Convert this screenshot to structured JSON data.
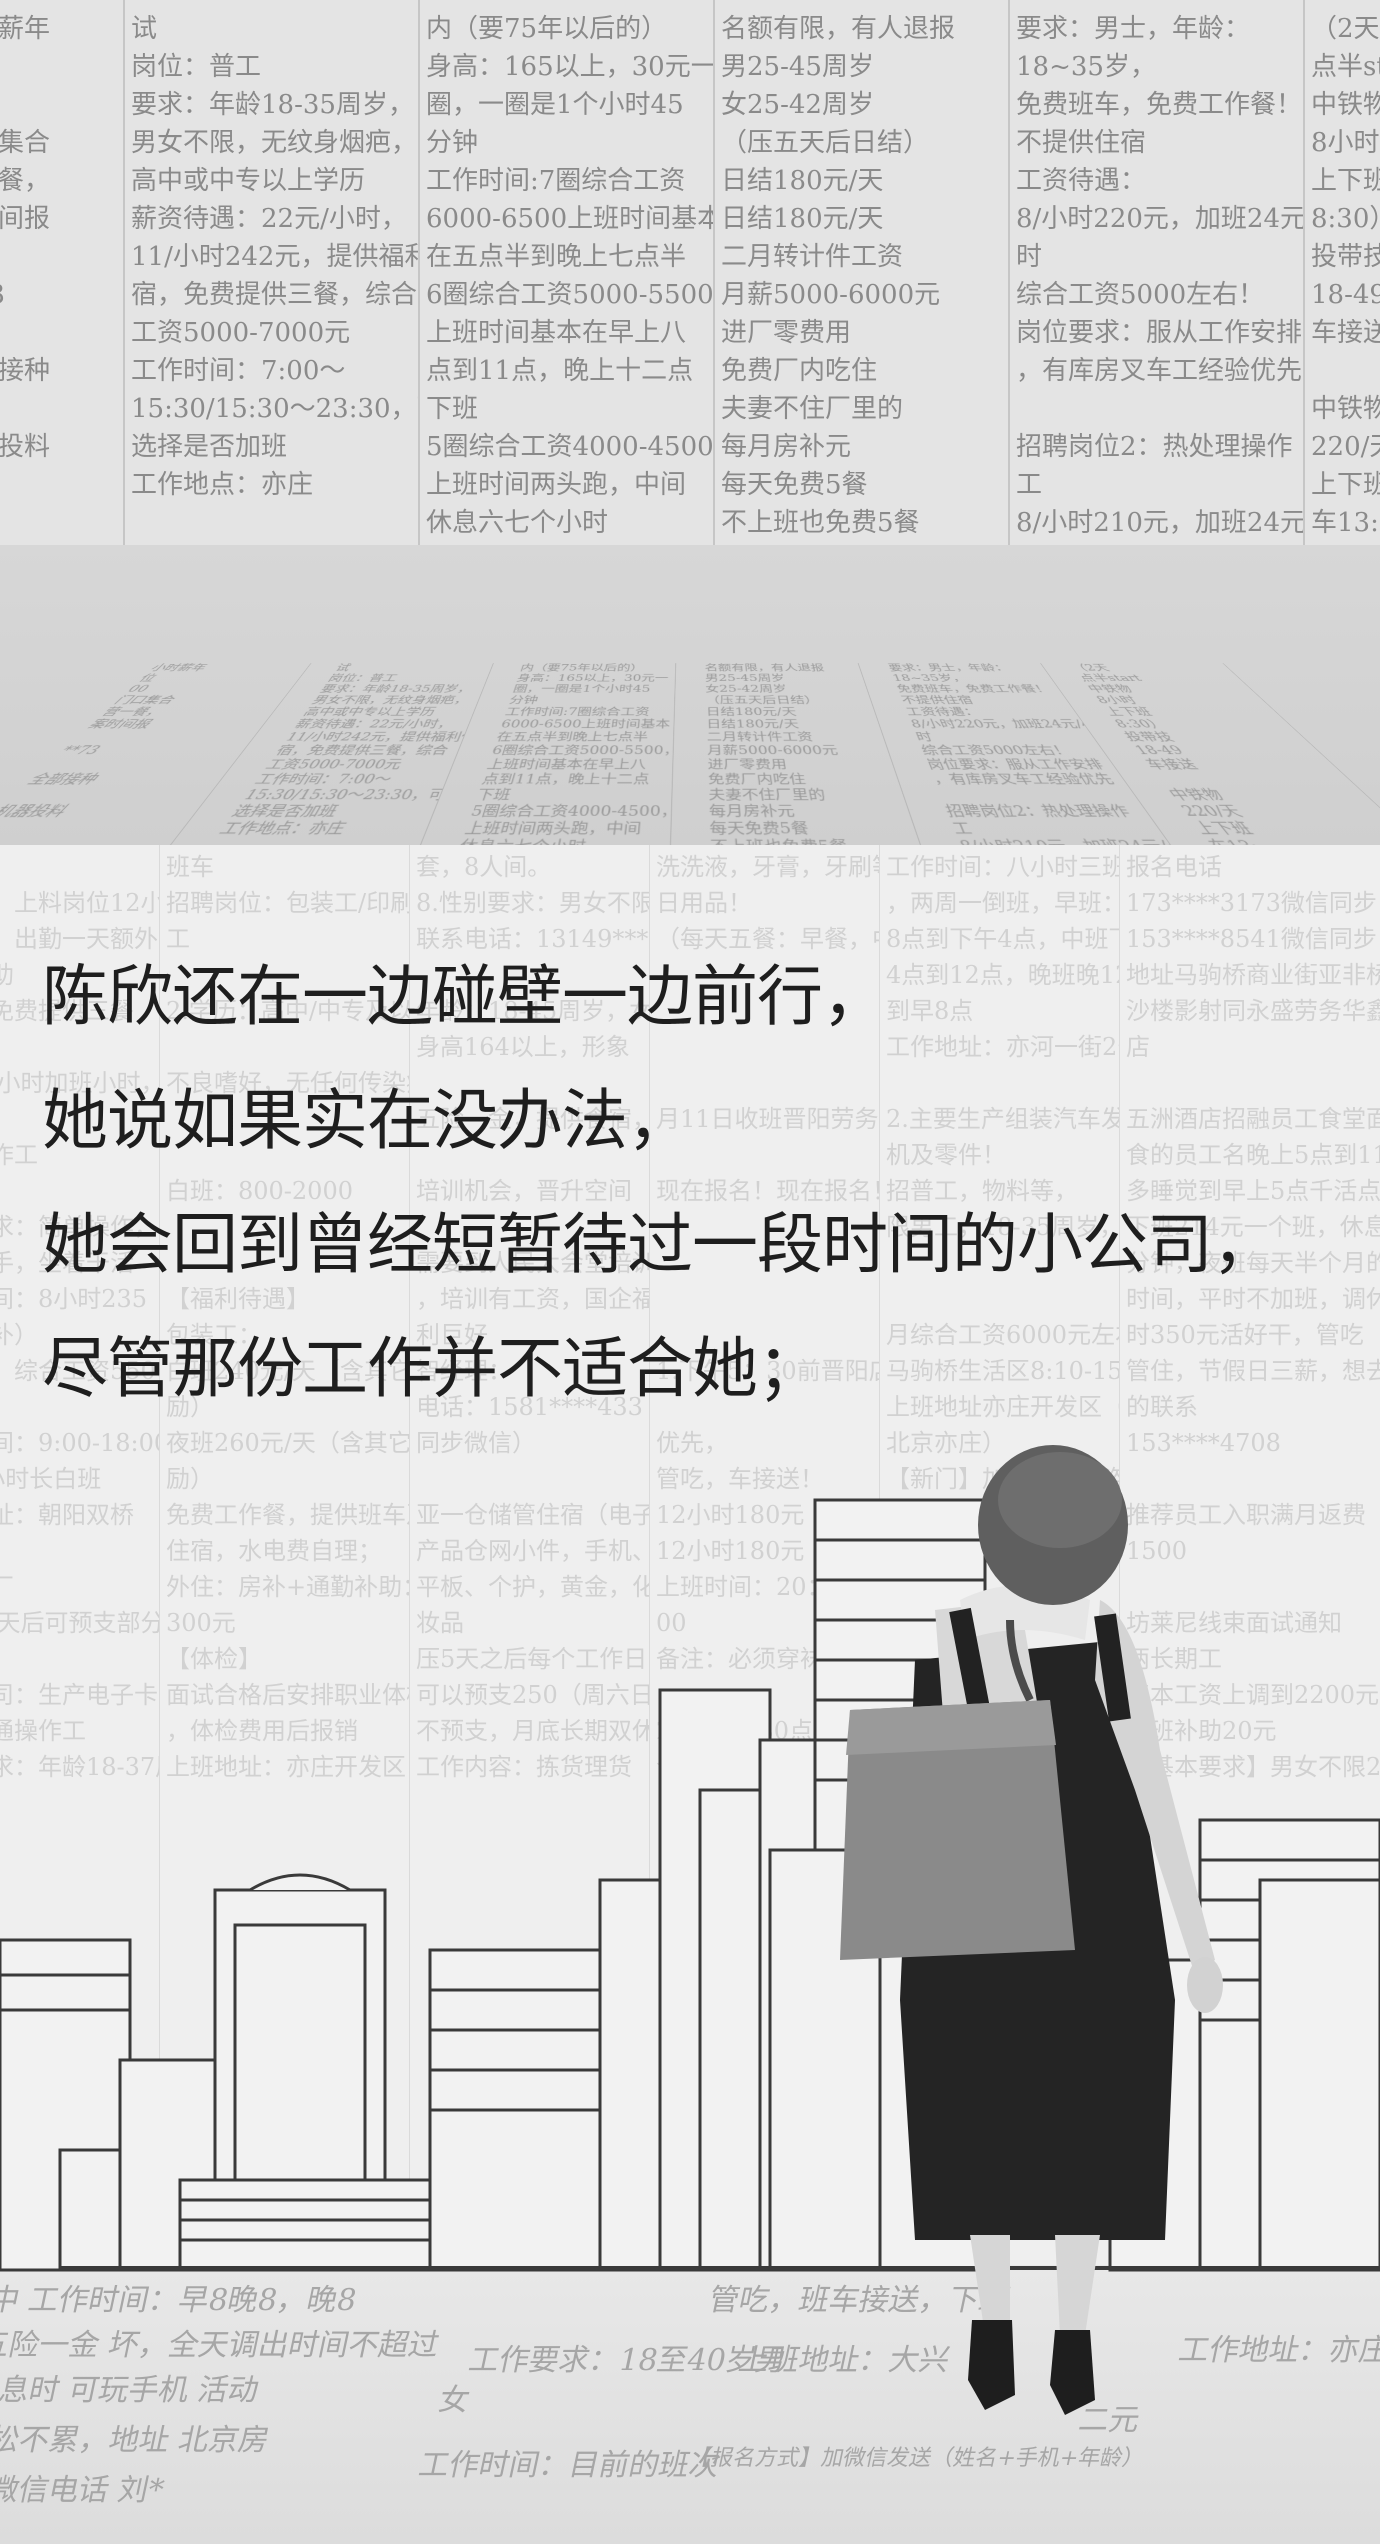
{
  "caption": {
    "lines": [
      "陈欣还在一边碰壁一边前行，",
      "她说如果实在没办法，",
      "她会回到曾经短暂待过一段时间的小公司，",
      "尽管那份工作并不适合她；"
    ]
  },
  "background_ads": {
    "columns": [
      {
        "lines": [
          "小时薪年",
          "位",
          "00",
          "门口集合",
          "营一餐，",
          "案时间报",
          "",
          "**73",
          "",
          "全部接种",
          "",
          "机器投料"
        ]
      },
      {
        "lines": [
          "试",
          "岗位：普工",
          "要求：年龄18-35周岁，",
          "男女不限，无纹身烟疤，",
          "高中或中专以上学历",
          "薪资待遇：22元/小时，",
          "11/小时242元，提供福利住",
          "宿，免费提供三餐，综合",
          "工资5000-7000元",
          "工作时间：7:00～",
          "15:30/15:30～23:30，可自由",
          "选择是否加班",
          "工作地点：亦庄"
        ]
      },
      {
        "lines": [
          "内（要75年以后的）",
          "身高：165以上，30元一",
          "圈，一圈是1个小时45",
          "分钟",
          "工作时间:7圈综合工资",
          "6000-6500上班时间基本",
          "在五点半到晚上七点半",
          "6圈综合工资5000-5500，",
          "上班时间基本在早上八",
          "点到11点，晚上十二点",
          "下班",
          "5圈综合工资4000-4500，",
          "上班时间两头跑，中间",
          "休息六七个小时"
        ]
      },
      {
        "lines": [
          "名额有限，有人退报",
          "男25-45周岁",
          "女25-42周岁",
          "（压五天后日结）",
          "日结180元/天",
          "日结180元/天",
          "二月转计件工资",
          "月薪5000-6000元",
          "进厂零费用",
          "免费厂内吃住",
          "夫妻不住厂里的",
          "每月房补元",
          "每天免费5餐",
          "不上班也免费5餐"
        ]
      },
      {
        "lines": [
          "要求：男士，年龄：",
          "18~35岁，",
          "免费班车，免费工作餐！",
          "不提供住宿",
          "工资待遇：",
          "8/小时220元，加班24元/小",
          "时",
          "综合工资5000左右！",
          "岗位要求：服从工作安排",
          "，有库房叉车工经验优先",
          "",
          "招聘岗位2：热处理操作",
          "工",
          "8/小时210元，加班24元/小"
        ]
      },
      {
        "lines": [
          "（2天",
          "点半start",
          "中铁物",
          "8小时",
          "上下班",
          "8:30）",
          "投带技",
          "18-49",
          "车接送",
          "",
          "中铁物",
          "220/天",
          "上下班",
          "车13:"
        ]
      }
    ],
    "lower_columns": [
      {
        "lines": [
          "试：",
          "四：上料岗位12小",
          "时，出勤一天额外",
          "补助",
          "，免费提供三餐",
          "",
          "10小时加班小时，上",
          "",
          "操作工",
          "",
          "要求：简单操作，",
          "上手，坐着干活",
          "时间：8小时235（220",
          "元补）",
          "元，综合工资5500左",
          "",
          "时间：9:00-18:00，上",
          "8小时长白班",
          "地址：朝阳双桥",
          "",
          "子厂",
          "90天后可预支部分",
          "",
          "公司：生产电子卡",
          "普通操作工",
          "要求：年龄18-37周岁"
        ]
      },
      {
        "lines": [
          "班车",
          "招聘岗位：包装工/印刷",
          "工",
          "",
          "2.学历：高中/中专及以上",
          "",
          "不良嗜好，无任何传染病",
          "",
          "",
          "白班：800-2000",
          "",
          "",
          "【福利待遇】",
          "包装工：",
          "白班240元/天（含其它奖",
          "励）",
          "夜班260元/天（含其它奖",
          "励）",
          "免费工作餐，提供班车及",
          "住宿，水电费自理；",
          "外住：房补+通勤补助：",
          "300元",
          "【体检】",
          "面试合格后安排职业体检",
          "，体检费用后报销",
          "上班地址：亦庄开发区"
        ]
      },
      {
        "lines": [
          "套，8人间。",
          "8.性别要求：男女不限",
          "联系电话：13149****15",
          "",
          "年龄：18-45周岁，女性",
          "身高164以上，形象",
          "",
          "五险一金，提供食宿，",
          "",
          "培训机会，晋升空间",
          "",
          "需要到人民大会堂培训",
          "，培训有工资，国企福",
          "利巨好",
          "智经理：",
          "电话：1581****433（不",
          "同步微信）",
          "",
          "亚一仓储管住宿（电子",
          "产品仓网小件，手机、",
          "平板、个护，黄金，化",
          "妆品",
          "压5天之后每个工作日",
          "可以预支250（周六日",
          "不预支，月底长期双休",
          "工作内容：拣货理货"
        ]
      },
      {
        "lines": [
          "洗洗液，牙膏，牙刷等等",
          "日用品！",
          "（每天五餐：早餐，中餐",
          "",
          "",
          "",
          "",
          "月11日收班晋阳劳务日",
          "",
          "现在报名！现在报名！",
          "",
          "",
          "",
          "",
          "1.下午5：30前晋阳店里集",
          "",
          "优先，",
          "管吃，车接送！",
          "12小时180元",
          "12小时180元",
          "上班时间：20：00-08：",
          "00",
          "备注：必须穿袜子，不要",
          "",
          "2晚上9：30点前到店里集",
          "合"
        ]
      },
      {
        "lines": [
          "工作时间：八小时三班倒",
          "，两周一倒班，早班：早",
          "8点到下午4点，中班下午",
          "4点到12点，晚班晚12点",
          "到早8点",
          "工作地址：亦河一街2号",
          "",
          "2.主要生产组装汽车发动",
          "机及零件！",
          "招普工，物料等，",
          "限男工，18-35周岁，",
          "",
          "",
          "月综合工资6000元左右",
          "马驹桥生活区8:10-15分钟",
          "上班地址亦庄开发区（",
          "北京亦庄）",
          "【新门】加微信报名咨询",
          "，回复不到请打电话咨询",
          "】】"
        ]
      },
      {
        "lines": [
          "报名电话",
          "173****3173微信同步",
          "153****8541微信同步",
          "地址马驹桥商业街亚非桥",
          "沙楼影射同永盛劳务华鑫",
          "店",
          "",
          "五洲酒店招融员工食堂面",
          "食的员工名晚上5点到11",
          "多睡觉到早上5点千活点",
          "下班214元一个班，休息30",
          "分钟，夜班每天半个月的",
          "时间，平时不加班，调休",
          "时350元活好干，管吃",
          "管住，节假日三薪，想去",
          "的联系",
          "153****4708",
          "",
          "推荐员工入职满月返费",
          "1500",
          "",
          "坊莱尼线束面试通知",
          "两长期工",
          "基本工资上调到2200元，",
          "夜班补助20元",
          "【基本要求】男女不限20"
        ]
      }
    ],
    "ground_lines": [
      "中 工作时间：早8晚8，晚8",
      "五险一金 坏，全天调出时间不超过",
      "休息时 可玩手机 活动",
      "轻松不累，地址 北京房",
      "山 微信电话 刘*",
      "工作要求：18至40岁男",
      "女",
      "工作时间：目前的班次",
      "管吃，班车接送，下班",
      "上班地址：大兴",
      "【报名方式】加微信发送（姓名+手机+年龄）",
      "二元",
      "工作地址：亦庄"
    ]
  }
}
